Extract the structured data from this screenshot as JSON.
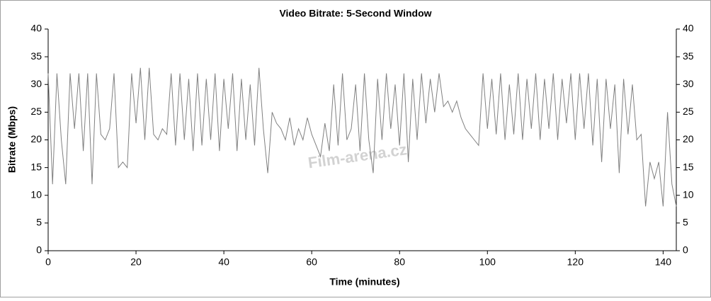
{
  "chart_data": {
    "type": "line",
    "title": "Video Bitrate: 5-Second Window",
    "x_label": "Time (minutes)",
    "y_label": "Bitrate (Mbps)",
    "watermark": "Film-arena.cz",
    "xlim": [
      0,
      143
    ],
    "xticks": [
      0,
      20,
      40,
      60,
      80,
      100,
      120,
      140
    ],
    "ylim": [
      0,
      40
    ],
    "yticks": [
      0,
      5,
      10,
      15,
      20,
      25,
      30,
      35,
      40
    ],
    "y2lim": [
      0,
      40
    ],
    "y2ticks": [
      0,
      5,
      10,
      15,
      20,
      25,
      30,
      35,
      40
    ],
    "grid": false,
    "x": [
      0,
      1,
      2,
      3,
      4,
      5,
      6,
      7,
      8,
      9,
      10,
      11,
      12,
      13,
      14,
      15,
      16,
      17,
      18,
      19,
      20,
      21,
      22,
      23,
      24,
      25,
      26,
      27,
      28,
      29,
      30,
      31,
      32,
      33,
      34,
      35,
      36,
      37,
      38,
      39,
      40,
      41,
      42,
      43,
      44,
      45,
      46,
      47,
      48,
      49,
      50,
      51,
      52,
      53,
      54,
      55,
      56,
      57,
      58,
      59,
      60,
      61,
      62,
      63,
      64,
      65,
      66,
      67,
      68,
      69,
      70,
      71,
      72,
      73,
      74,
      75,
      76,
      77,
      78,
      79,
      80,
      81,
      82,
      83,
      84,
      85,
      86,
      87,
      88,
      89,
      90,
      91,
      92,
      93,
      94,
      95,
      96,
      97,
      98,
      99,
      100,
      101,
      102,
      103,
      104,
      105,
      106,
      107,
      108,
      109,
      110,
      111,
      112,
      113,
      114,
      115,
      116,
      117,
      118,
      119,
      120,
      121,
      122,
      123,
      124,
      125,
      126,
      127,
      128,
      129,
      130,
      131,
      132,
      133,
      134,
      135,
      136,
      137,
      138,
      139,
      140,
      141,
      142,
      143
    ],
    "series": [
      {
        "name": "Bitrate",
        "color": "#808080",
        "values": [
          32,
          12,
          32,
          20,
          12,
          32,
          22,
          32,
          18,
          32,
          12,
          32,
          21,
          20,
          22,
          32,
          15,
          16,
          15,
          32,
          23,
          33,
          20,
          33,
          21,
          20,
          22,
          21,
          32,
          19,
          32,
          20,
          31,
          18,
          32,
          19,
          31,
          20,
          32,
          18,
          31,
          22,
          32,
          18,
          31,
          20,
          30,
          19,
          33,
          22,
          14,
          25,
          23,
          22,
          20,
          24,
          19,
          22,
          20,
          24,
          21,
          19,
          17,
          23,
          18,
          30,
          19,
          32,
          20,
          22,
          30,
          18,
          32,
          20,
          14,
          31,
          20,
          32,
          22,
          30,
          19,
          32,
          16,
          31,
          20,
          32,
          23,
          31,
          25,
          32,
          26,
          27,
          25,
          27,
          24,
          22,
          21,
          20,
          19,
          32,
          22,
          31,
          21,
          32,
          20,
          30,
          21,
          32,
          20,
          31,
          22,
          32,
          20,
          31,
          22,
          32,
          20,
          31,
          23,
          32,
          20,
          32,
          22,
          32,
          19,
          31,
          16,
          31,
          22,
          30,
          14,
          31,
          21,
          30,
          20,
          21,
          8,
          16,
          13,
          16,
          8,
          25,
          12,
          8
        ]
      }
    ]
  }
}
